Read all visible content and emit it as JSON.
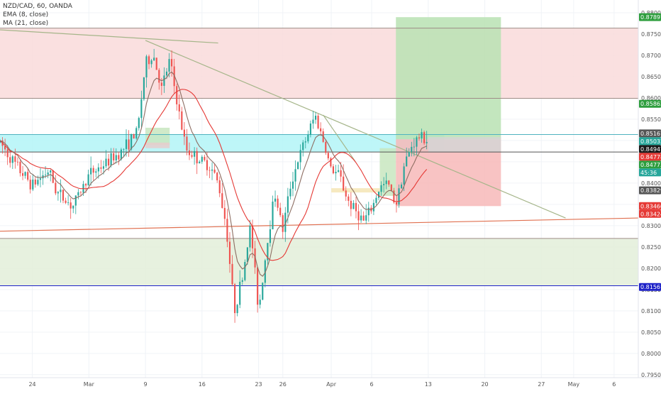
{
  "legend": {
    "symbol": "NZD/CAD, 60, OANDA",
    "ema": "EMA (8, close)",
    "ma": "MA (21, close)"
  },
  "colors": {
    "candle_up": "#26a69a",
    "candle_down": "#ef5350",
    "ema": "#8d6e63",
    "ma": "#e53935",
    "trendline": "#a5b589",
    "support_line": "#e07050",
    "level_line_blue": "#1e22c8",
    "zone_red": "#f8d7d7",
    "zone_cyan": "#b3f5f7",
    "zone_green_low": "#e0efd5",
    "target_green": "#b5e0b0",
    "stop_red": "#f7b8b8"
  },
  "chart_data": {
    "type": "candlestick",
    "title": "NZD/CAD, 60, OANDA",
    "indicators": [
      "EMA (8, close)",
      "MA (21, close)"
    ],
    "x_axis": {
      "tick_labels": [
        "24",
        "Mar",
        "9",
        "16",
        "23",
        "26",
        "Apr",
        "6",
        "13",
        "20",
        "27",
        "May",
        "6"
      ],
      "range": [
        "2020-02-21",
        "2020-05-08"
      ]
    },
    "y_axis": {
      "tick_labels": [
        "0.79500",
        "0.80000",
        "0.80500",
        "0.81000",
        "0.81500",
        "0.82000",
        "0.82500",
        "0.83000",
        "0.83500",
        "0.84000",
        "0.84500",
        "0.85000",
        "0.85500",
        "0.86000",
        "0.86500",
        "0.87000",
        "0.87500",
        "0.88000"
      ],
      "range": [
        0.7943,
        0.883
      ],
      "position": "right"
    },
    "price_path": [
      {
        "date": "2020-02-20",
        "price": 0.8495
      },
      {
        "date": "2020-02-22",
        "price": 0.844
      },
      {
        "date": "2020-02-24",
        "price": 0.8395
      },
      {
        "date": "2020-02-26",
        "price": 0.843
      },
      {
        "date": "2020-02-27",
        "price": 0.838
      },
      {
        "date": "2020-02-29",
        "price": 0.8345
      },
      {
        "date": "2020-03-02",
        "price": 0.842
      },
      {
        "date": "2020-03-04",
        "price": 0.8445
      },
      {
        "date": "2020-03-06",
        "price": 0.8475
      },
      {
        "date": "2020-03-08",
        "price": 0.852
      },
      {
        "date": "2020-03-09",
        "price": 0.868
      },
      {
        "date": "2020-03-10",
        "price": 0.87
      },
      {
        "date": "2020-03-11",
        "price": 0.862
      },
      {
        "date": "2020-03-12",
        "price": 0.869
      },
      {
        "date": "2020-03-13",
        "price": 0.858
      },
      {
        "date": "2020-03-14",
        "price": 0.848
      },
      {
        "date": "2020-03-16",
        "price": 0.845
      },
      {
        "date": "2020-03-17",
        "price": 0.844
      },
      {
        "date": "2020-03-18",
        "price": 0.84
      },
      {
        "date": "2020-03-19",
        "price": 0.83
      },
      {
        "date": "2020-03-20",
        "price": 0.81
      },
      {
        "date": "2020-03-21",
        "price": 0.818
      },
      {
        "date": "2020-03-22",
        "price": 0.83
      },
      {
        "date": "2020-03-23",
        "price": 0.81
      },
      {
        "date": "2020-03-24",
        "price": 0.825
      },
      {
        "date": "2020-03-25",
        "price": 0.838
      },
      {
        "date": "2020-03-26",
        "price": 0.829
      },
      {
        "date": "2020-03-27",
        "price": 0.84
      },
      {
        "date": "2020-03-28",
        "price": 0.846
      },
      {
        "date": "2020-03-30",
        "price": 0.856
      },
      {
        "date": "2020-03-31",
        "price": 0.85
      },
      {
        "date": "2020-04-01",
        "price": 0.843
      },
      {
        "date": "2020-04-02",
        "price": 0.842
      },
      {
        "date": "2020-04-03",
        "price": 0.836
      },
      {
        "date": "2020-04-05",
        "price": 0.831
      },
      {
        "date": "2020-04-06",
        "price": 0.834
      },
      {
        "date": "2020-04-07",
        "price": 0.839
      },
      {
        "date": "2020-04-08",
        "price": 0.84
      },
      {
        "date": "2020-04-09",
        "price": 0.835
      },
      {
        "date": "2020-04-10",
        "price": 0.844
      },
      {
        "date": "2020-04-11",
        "price": 0.849
      },
      {
        "date": "2020-04-12",
        "price": 0.851
      },
      {
        "date": "2020-04-13",
        "price": 0.85
      }
    ],
    "levels": [
      {
        "price": 0.8764,
        "color": "#9e8c86"
      },
      {
        "price": 0.8599,
        "color": "#9e8c86"
      },
      {
        "price": 0.8514,
        "color": "#4fb3bf"
      },
      {
        "price": 0.8473,
        "color": "#555555"
      },
      {
        "price": 0.827,
        "color": "#9e8c86"
      },
      {
        "price": 0.8159,
        "color": "#1e22c8"
      }
    ],
    "zones": [
      {
        "x0": "2020-02-20",
        "x1": "2020-05-09",
        "y0": 0.8599,
        "y1": 0.8764,
        "color": "#f9dada"
      },
      {
        "x0": "2020-02-20",
        "x1": "2020-04-15",
        "y0": 0.8473,
        "y1": 0.8514,
        "color": "#b3f5f7"
      },
      {
        "x0": "2020-02-20",
        "x1": "2020-05-09",
        "y0": 0.8159,
        "y1": 0.827,
        "color": "#e3efd9"
      },
      {
        "x0": "2020-03-09",
        "x1": "2020-03-12",
        "y0": 0.849,
        "y1": 0.853,
        "color": "#c8e6c0"
      },
      {
        "x0": "2020-03-09",
        "x1": "2020-03-12",
        "y0": 0.8482,
        "y1": 0.8495,
        "color": "#e6cccc"
      },
      {
        "x0": "2020-04-07",
        "x1": "2020-04-09",
        "y0": 0.837,
        "y1": 0.8482,
        "color": "#c8e6c0"
      },
      {
        "x0": "2020-04-09",
        "x1": "2020-04-22",
        "y0": 0.8503,
        "y1": 0.87897,
        "color": "#b8e2b3"
      },
      {
        "x0": "2020-04-09",
        "x1": "2020-04-22",
        "y0": 0.8346,
        "y1": 0.8503,
        "color": "#f7b8b8"
      },
      {
        "x0": "2020-04-13",
        "x1": "2020-04-22",
        "y0": 0.8472,
        "y1": 0.8508,
        "color": "#d5d5d5"
      },
      {
        "x0": "2020-04-01",
        "x1": "2020-04-07",
        "y0": 0.8378,
        "y1": 0.8388,
        "color": "#f5e5b5"
      }
    ],
    "trendlines": [
      {
        "from": {
          "date": "2020-02-20",
          "price": 0.876
        },
        "to": {
          "date": "2020-03-18",
          "price": 0.8729
        },
        "color": "#a5b589"
      },
      {
        "from": {
          "date": "2020-03-09",
          "price": 0.8735
        },
        "to": {
          "date": "2020-04-30",
          "price": 0.8318
        },
        "color": "#a5b589"
      },
      {
        "from": {
          "date": "2020-02-20",
          "price": 0.8287
        },
        "to": {
          "date": "2020-05-09",
          "price": 0.8318
        },
        "color": "#e07050"
      },
      {
        "from": {
          "date": "2020-03-31",
          "price": 0.856
        },
        "to": {
          "date": "2020-04-04",
          "price": 0.845
        },
        "color": "#a5b589"
      }
    ],
    "price_tags": [
      {
        "label": "0.87897",
        "price": 0.87897,
        "bg": "#2e9e3e",
        "fg": "#ffffff"
      },
      {
        "label": "0.85862",
        "price": 0.85862,
        "bg": "#2e9e3e",
        "fg": "#ffffff"
      },
      {
        "label": "0.85167",
        "price": 0.85167,
        "bg": "#555555",
        "fg": "#ffffff"
      },
      {
        "label": "0.85032",
        "price": 0.85032,
        "bg": "#26a69a",
        "fg": "#ffffff"
      },
      {
        "label": "45:36",
        "price": 0.8477,
        "bg": "#26a69a",
        "fg": "#ffffff"
      },
      {
        "label": "0.84947",
        "price": 0.84947,
        "bg": "#1a1a1a",
        "fg": "#ffffff"
      },
      {
        "label": "0.84778",
        "price": 0.84778,
        "bg": "#e53935",
        "fg": "#ffffff"
      },
      {
        "label": "0.84773",
        "price": 0.84773,
        "bg": "#2e9e3e",
        "fg": "#ffffff"
      },
      {
        "label": "0.83829",
        "price": 0.83829,
        "bg": "#555555",
        "fg": "#ffffff"
      },
      {
        "label": "0.83460",
        "price": 0.8346,
        "bg": "#e53935",
        "fg": "#ffffff"
      },
      {
        "label": "0.83424",
        "price": 0.83424,
        "bg": "#e53935",
        "fg": "#ffffff"
      },
      {
        "label": "0.81561",
        "price": 0.81561,
        "bg": "#1e22c8",
        "fg": "#ffffff"
      }
    ]
  }
}
